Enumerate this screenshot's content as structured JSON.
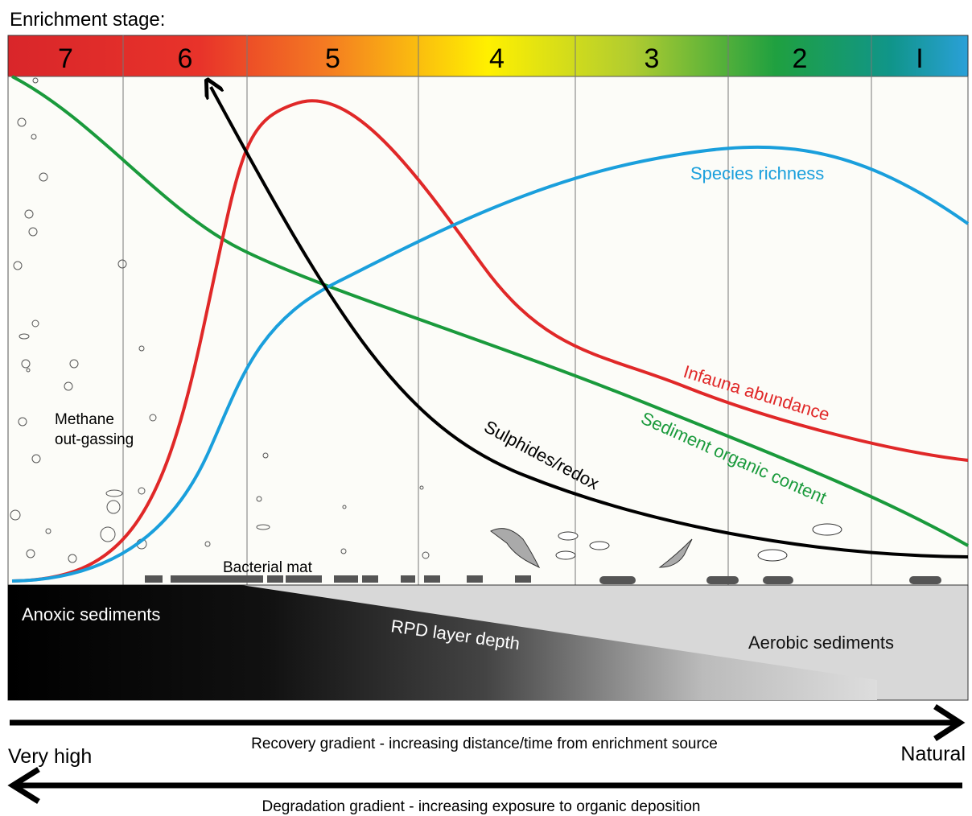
{
  "title": "Enrichment stage:",
  "stages": [
    "7",
    "6",
    "5",
    "4",
    "3",
    "2",
    "I"
  ],
  "curve_labels": {
    "species_richness": "Species richness",
    "infauna_abundance": "Infauna abundance",
    "sediment_organic_content": "Sediment organic content",
    "sulphides_redox": "Sulphides/redox"
  },
  "annotations": {
    "methane": [
      "Methane",
      "out-gassing"
    ],
    "bacterial_mat": "Bacterial mat",
    "anoxic": "Anoxic sediments",
    "rpd": "RPD layer depth",
    "aerobic": "Aerobic sediments"
  },
  "gradients": {
    "recovery": "Recovery gradient - increasing distance/time from enrichment source",
    "degradation": "Degradation gradient - increasing exposure to organic deposition",
    "left": "Very high",
    "right": "Natural"
  }
}
